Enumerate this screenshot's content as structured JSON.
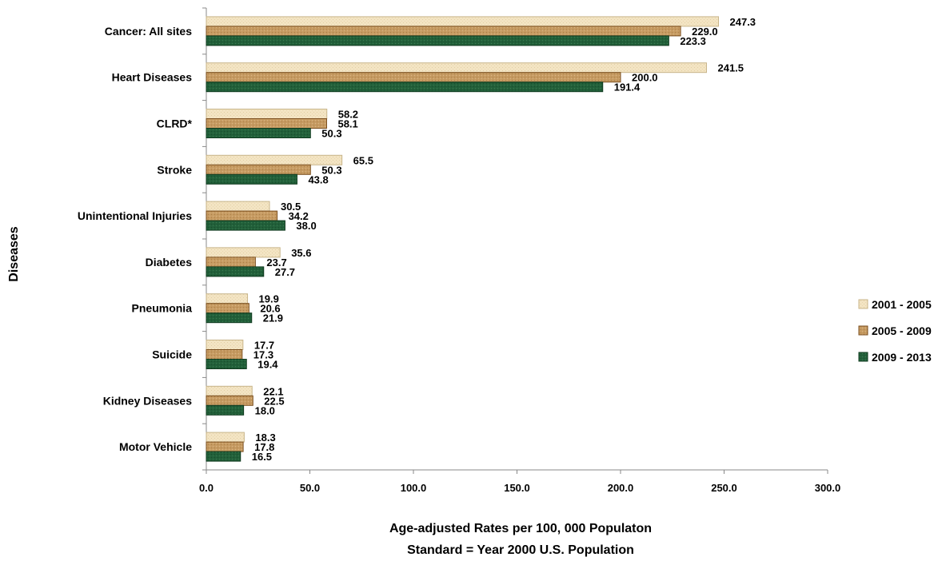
{
  "chart_data": {
    "type": "bar",
    "orientation": "horizontal",
    "categories": [
      "Cancer: All sites",
      "Heart Diseases",
      "CLRD*",
      "Stroke",
      "Unintentional Injuries",
      "Diabetes",
      "Pneumonia",
      "Suicide",
      "Kidney Diseases",
      "Motor Vehicle"
    ],
    "series": [
      {
        "name": "2001 - 2005",
        "values": [
          247.3,
          241.5,
          58.2,
          65.5,
          30.5,
          35.6,
          19.9,
          17.7,
          22.1,
          18.3
        ],
        "labels": [
          "247.3",
          "241.5",
          "58.2",
          "65.5",
          "30.5",
          "35.6",
          "19.9",
          "17.7",
          "22.1",
          "18.3"
        ],
        "color": "#F2E2BE"
      },
      {
        "name": "2005 - 2009",
        "values": [
          229.0,
          200.0,
          58.1,
          50.3,
          34.2,
          23.7,
          20.6,
          17.3,
          22.5,
          17.8
        ],
        "labels": [
          "229.0",
          "200.0",
          "58.1",
          "50.3",
          "34.2",
          "23.7",
          "20.6",
          "17.3",
          "22.5",
          "17.8"
        ],
        "color": "#C9A06A"
      },
      {
        "name": "2009 - 2013",
        "values": [
          223.3,
          191.4,
          50.3,
          43.8,
          38.0,
          27.7,
          21.9,
          19.4,
          18.0,
          16.5
        ],
        "labels": [
          "223.3",
          "191.4",
          "50.3",
          "43.8",
          "38.0",
          "27.7",
          "21.9",
          "19.4",
          "18.0",
          "16.5"
        ],
        "color": "#1F5A32"
      }
    ],
    "xlim": [
      0,
      300
    ],
    "xticks": [
      "0.0",
      "50.0",
      "100.0",
      "150.0",
      "200.0",
      "250.0",
      "300.0"
    ],
    "ylabel": "Diseases",
    "xlabel_line1": "Age-adjusted Rates per 100, 000 Populaton",
    "xlabel_line2": "Standard = Year 2000 U.S. Population",
    "legend_position": "right",
    "grid": false
  }
}
